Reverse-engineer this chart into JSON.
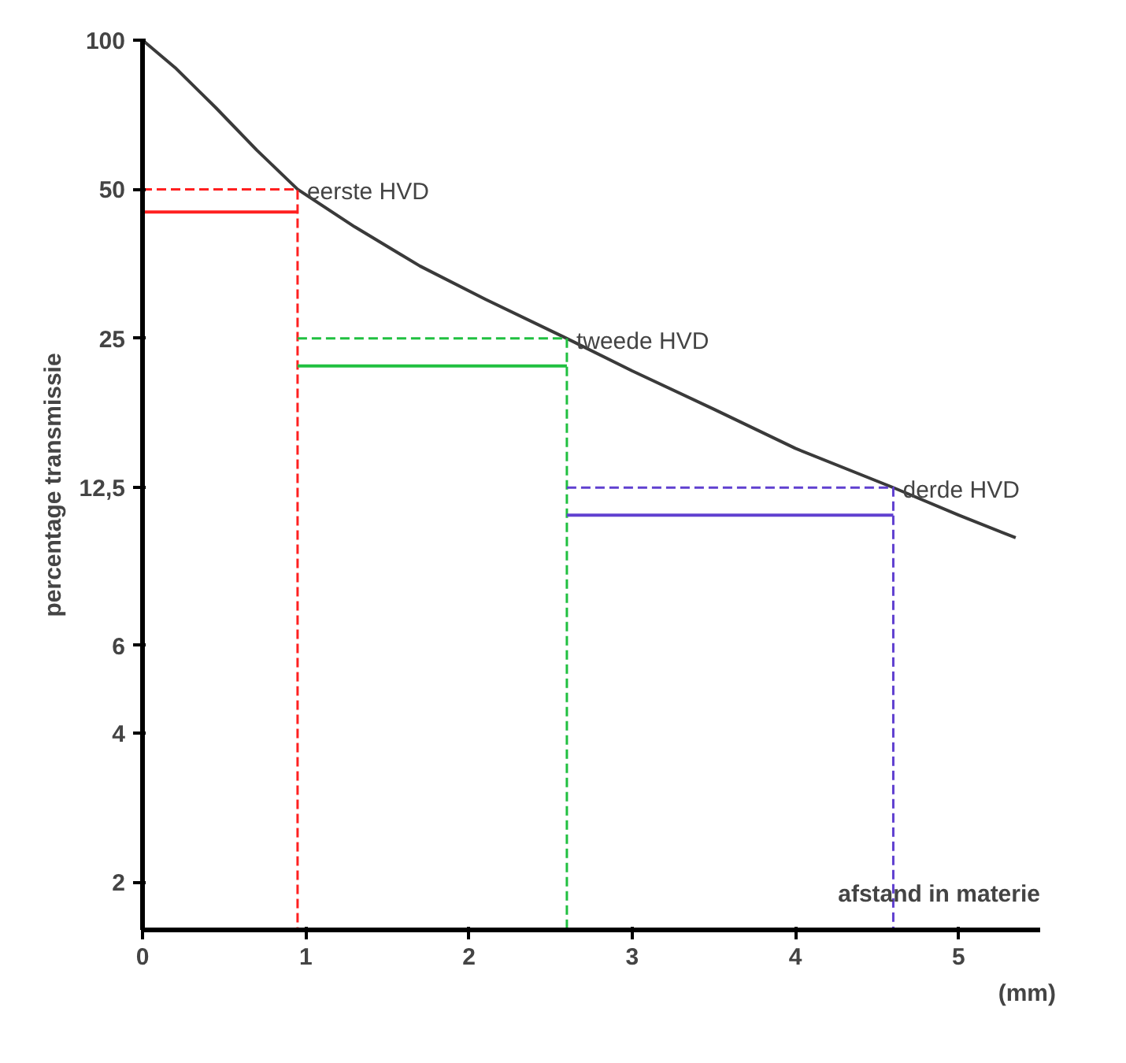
{
  "chart_data": {
    "type": "line",
    "xlabel": "afstand in materie",
    "ylabel": "percentage transmissie",
    "log": "y",
    "xlim": [
      0,
      5.5
    ],
    "xticks": [
      0,
      1,
      2,
      3,
      4,
      5
    ],
    "ylim": [
      1.6,
      100
    ],
    "yticks": [
      2,
      4,
      6,
      {
        "value": 12.5,
        "label": "12,5"
      },
      25,
      50,
      100
    ],
    "series": [
      {
        "color": "#3a3a3a",
        "line_style": "solid",
        "x": [
          0,
          0.2,
          0.45,
          0.7,
          0.95,
          1.3,
          1.7,
          2.1,
          2.6,
          3.0,
          3.5,
          4.0,
          4.6,
          5.0,
          5.35
        ],
        "values": [
          100,
          88,
          73,
          60,
          50,
          42,
          35,
          30,
          25,
          21.5,
          18,
          15,
          12.5,
          11,
          9.9
        ]
      },
      {
        "color": "#ff2020",
        "line_style": "dashed",
        "x": [
          0,
          0.95,
          0.95
        ],
        "values": [
          50,
          50,
          1.6
        ]
      },
      {
        "color": "#ff2020",
        "line_style": "solid",
        "x": [
          0,
          0.95
        ],
        "values": [
          45,
          45
        ]
      },
      {
        "color": "#20c040",
        "line_style": "dashed",
        "x": [
          0.95,
          2.6,
          2.6
        ],
        "values": [
          25,
          25,
          1.6
        ]
      },
      {
        "color": "#20c040",
        "line_style": "solid",
        "x": [
          0.95,
          2.6
        ],
        "values": [
          22,
          22
        ]
      },
      {
        "color": "#6040d0",
        "line_style": "dashed",
        "x": [
          2.6,
          4.6,
          4.6
        ],
        "values": [
          12.5,
          12.5,
          1.6
        ]
      },
      {
        "color": "#6040d0",
        "line_style": "solid",
        "x": [
          2.6,
          4.6
        ],
        "values": [
          11,
          11
        ]
      }
    ],
    "annotations": [
      {
        "text": "eerste HVD",
        "x": 0.95,
        "y": 50
      },
      {
        "text": "tweede HVD",
        "x": 2.6,
        "y": 25
      },
      {
        "text": "derde HVD",
        "x": 4.6,
        "y": 12.5
      },
      "(mm)"
    ]
  }
}
